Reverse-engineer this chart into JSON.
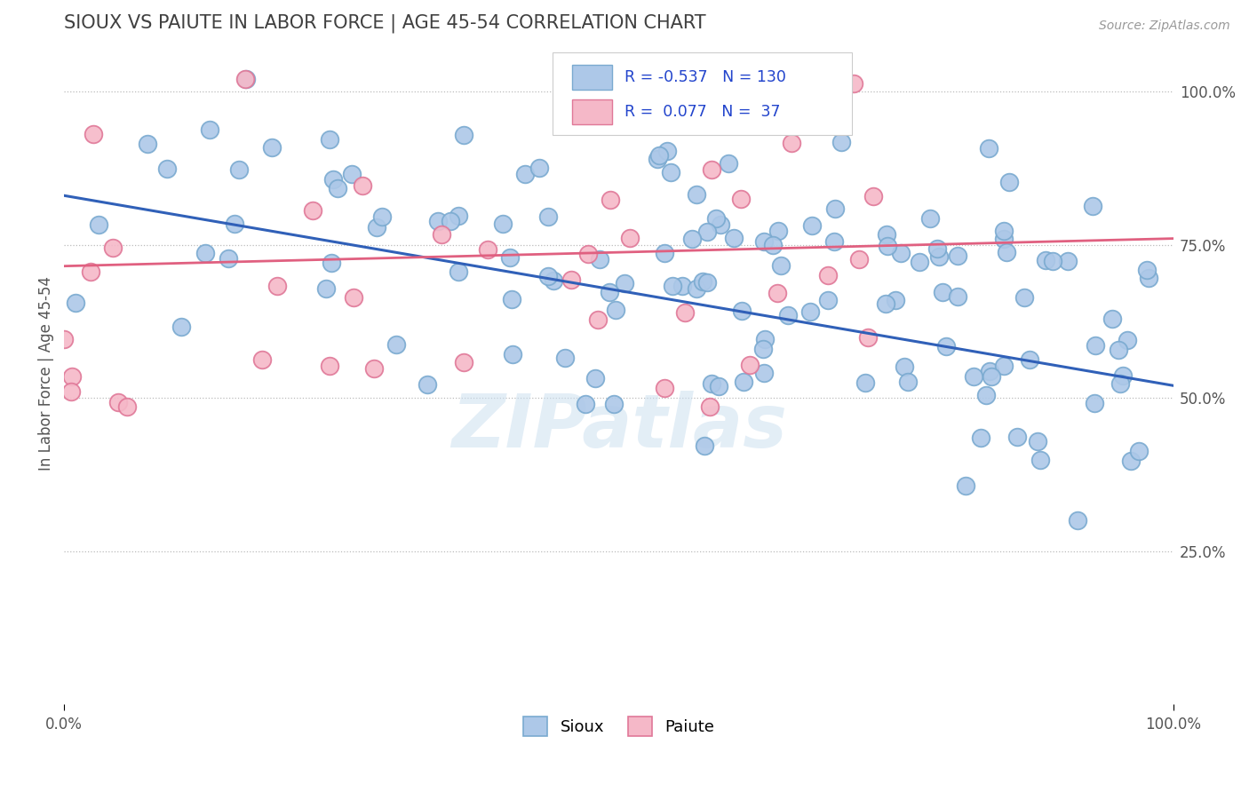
{
  "title": "SIOUX VS PAIUTE IN LABOR FORCE | AGE 45-54 CORRELATION CHART",
  "source_text": "Source: ZipAtlas.com",
  "ylabel": "In Labor Force | Age 45-54",
  "xlim": [
    0.0,
    1.0
  ],
  "ylim": [
    0.0,
    1.05
  ],
  "ytick_positions": [
    0.25,
    0.5,
    0.75,
    1.0
  ],
  "ytick_labels": [
    "25.0%",
    "50.0%",
    "75.0%",
    "100.0%"
  ],
  "sioux_color": "#adc8e8",
  "sioux_edge_color": "#7aaad0",
  "paiute_color": "#f5b8c8",
  "paiute_edge_color": "#e07898",
  "sioux_line_color": "#3060b8",
  "paiute_line_color": "#e06080",
  "R_sioux": -0.537,
  "N_sioux": 130,
  "R_paiute": 0.077,
  "N_paiute": 37,
  "sioux_trend_start_y": 0.83,
  "sioux_trend_end_y": 0.52,
  "paiute_trend_start_y": 0.715,
  "paiute_trend_end_y": 0.76,
  "watermark": "ZIPatlas",
  "background_color": "#ffffff",
  "grid_color": "#bbbbbb",
  "title_color": "#404040",
  "axis_label_color": "#555555",
  "legend_text_color": "#2244cc",
  "legend_n_color": "#2244cc"
}
